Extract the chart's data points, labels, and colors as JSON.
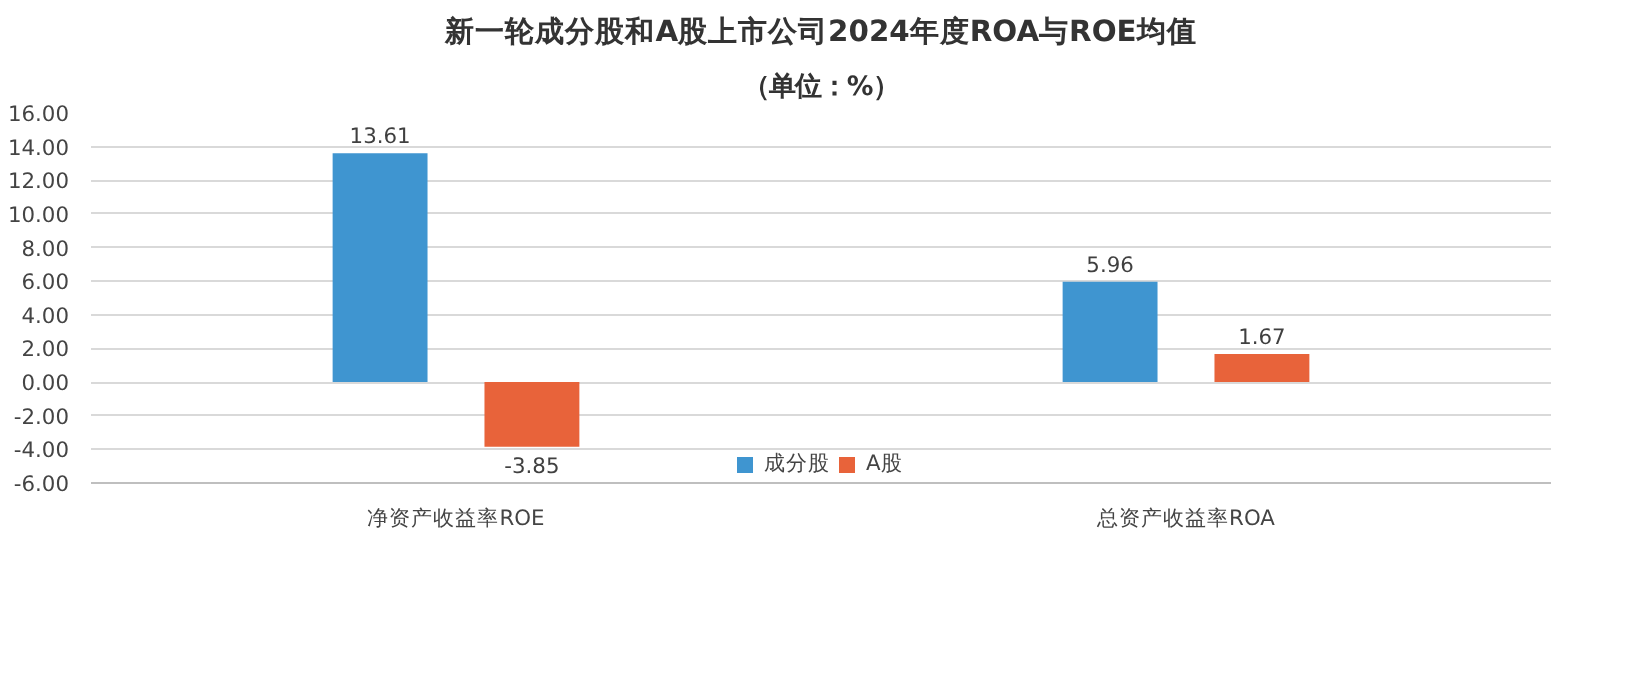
{
  "chart_data": {
    "type": "bar",
    "title": "新一轮成分股和A股上市公司2024年度ROA与ROE均值",
    "subtitle": "（单位：%）",
    "categories": [
      "净资产收益率ROE",
      "总资产收益率ROA"
    ],
    "series": [
      {
        "name": "成分股",
        "color": "#3f95d0",
        "values": [
          13.61,
          5.96
        ]
      },
      {
        "name": "A股",
        "color": "#e8633a",
        "values": [
          -3.85,
          1.67
        ]
      }
    ],
    "ylim": [
      -6,
      16
    ],
    "yticks": [
      {
        "value": -6,
        "label": "-6.00"
      },
      {
        "value": -4,
        "label": "-4.00"
      },
      {
        "value": -2,
        "label": "-2.00"
      },
      {
        "value": 0,
        "label": "0.00"
      },
      {
        "value": 2,
        "label": "2.00"
      },
      {
        "value": 4,
        "label": "4.00"
      },
      {
        "value": 6,
        "label": "6.00"
      },
      {
        "value": 8,
        "label": "8.00"
      },
      {
        "value": 10,
        "label": "10.00"
      },
      {
        "value": 12,
        "label": "12.00"
      },
      {
        "value": 14,
        "label": "14.00"
      },
      {
        "value": 16,
        "label": "16.00"
      }
    ],
    "grid": "y",
    "legend": "bottom",
    "data_labels": true
  }
}
